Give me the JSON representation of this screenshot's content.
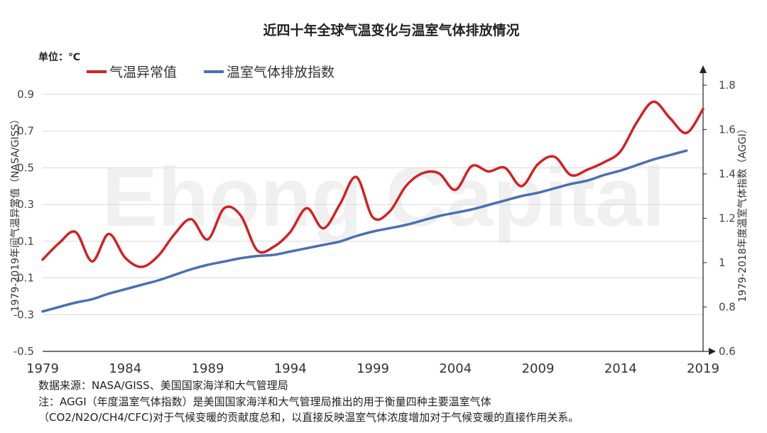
{
  "chart_data": {
    "type": "line",
    "title": "近四十年全球气温变化与温室气体排放情况",
    "unit_label": "单位：℃",
    "ylabel_left": "1979-2019年间气温异常值（NASA/GISS）",
    "ylabel_right": "1979-2018年度温室气体指数（AGGI）",
    "watermark": "Ehong Capital",
    "x_tick_labels": [
      "1979",
      "1984",
      "1989",
      "1994",
      "1999",
      "2004",
      "2009",
      "2014",
      "2019"
    ],
    "y_left_ticks": [
      "-0.5",
      "-0.3",
      "-0.1",
      "0.1",
      "0.3",
      "0.5",
      "0.7",
      "0.9"
    ],
    "y_right_ticks": [
      "0.6",
      "0.8",
      "1",
      "1.2",
      "1.4",
      "1.6",
      "1.8"
    ],
    "ylim_left": [
      -0.5,
      0.95
    ],
    "ylim_right": [
      0.6,
      1.8
    ],
    "xlim": [
      1979,
      2019
    ],
    "legend_position": "top-left",
    "grid": true,
    "series": [
      {
        "name": "气温异常值",
        "axis": "left",
        "color": "#d42020",
        "x": [
          1979,
          1980,
          1981,
          1982,
          1983,
          1984,
          1985,
          1986,
          1987,
          1988,
          1989,
          1990,
          1991,
          1992,
          1993,
          1994,
          1995,
          1996,
          1997,
          1998,
          1999,
          2000,
          2001,
          2002,
          2003,
          2004,
          2005,
          2006,
          2007,
          2008,
          2009,
          2010,
          2011,
          2012,
          2013,
          2014,
          2015,
          2016,
          2017,
          2018,
          2019
        ],
        "values": [
          0.0,
          0.09,
          0.15,
          -0.01,
          0.14,
          0.01,
          -0.04,
          0.02,
          0.14,
          0.22,
          0.11,
          0.28,
          0.24,
          0.05,
          0.07,
          0.15,
          0.28,
          0.17,
          0.3,
          0.45,
          0.23,
          0.26,
          0.4,
          0.47,
          0.47,
          0.38,
          0.51,
          0.48,
          0.5,
          0.4,
          0.52,
          0.56,
          0.46,
          0.49,
          0.53,
          0.59,
          0.75,
          0.86,
          0.77,
          0.69,
          0.82
        ]
      },
      {
        "name": "温室气体排放指数",
        "axis": "right",
        "color": "#4a6fb5",
        "x": [
          1979,
          1980,
          1981,
          1982,
          1983,
          1984,
          1985,
          1986,
          1987,
          1988,
          1989,
          1990,
          1991,
          1992,
          1993,
          1994,
          1995,
          1996,
          1997,
          1998,
          1999,
          2000,
          2001,
          2002,
          2003,
          2004,
          2005,
          2006,
          2007,
          2008,
          2009,
          2010,
          2011,
          2012,
          2013,
          2014,
          2015,
          2016,
          2017,
          2018
        ],
        "values": [
          0.78,
          0.8,
          0.82,
          0.835,
          0.86,
          0.88,
          0.9,
          0.92,
          0.945,
          0.97,
          0.99,
          1.005,
          1.02,
          1.03,
          1.035,
          1.05,
          1.065,
          1.08,
          1.095,
          1.12,
          1.14,
          1.155,
          1.17,
          1.19,
          1.21,
          1.225,
          1.24,
          1.26,
          1.28,
          1.3,
          1.315,
          1.335,
          1.355,
          1.37,
          1.395,
          1.415,
          1.44,
          1.465,
          1.485,
          1.505
        ]
      }
    ]
  },
  "footnotes": {
    "source": "数据来源：NASA/GISS、美国国家海洋和大气管理局",
    "note_line1": "注：AGGI（年度温室气体指数）是美国国家海洋和大气管理局推出的用于衡量四种主要温室气体",
    "note_line2": "（CO2/N2O/CH4/CFC)对于气候变暖的贡献度总和，以直接反映温室气体浓度增加对于气候变暖的直接作用关系。"
  }
}
